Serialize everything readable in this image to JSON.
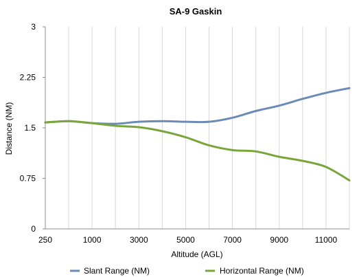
{
  "chart_data": {
    "type": "line",
    "title": "SA-9 Gaskin",
    "xlabel": "Altitude (AGL)",
    "ylabel": "Distance (NM)",
    "x": [
      250,
      500,
      1000,
      2000,
      3000,
      4000,
      5000,
      6000,
      7000,
      8000,
      9000,
      10000,
      11000,
      12000
    ],
    "x_tick_labels": [
      "250",
      "1000",
      "3000",
      "5000",
      "7000",
      "9000",
      "11000"
    ],
    "y_tick_labels": [
      "0",
      "0.75",
      "1.5",
      "2.25",
      "3"
    ],
    "ylim": [
      0,
      3
    ],
    "grid": "vertical",
    "legend_position": "bottom",
    "series": [
      {
        "name": "Slant Range (NM)",
        "color": "#6a8bb8",
        "values": [
          1.58,
          1.6,
          1.57,
          1.56,
          1.59,
          1.6,
          1.59,
          1.59,
          1.65,
          1.75,
          1.83,
          1.93,
          2.02,
          2.09
        ]
      },
      {
        "name": "Horizontal Range (NM)",
        "color": "#7aa53b",
        "values": [
          1.58,
          1.6,
          1.57,
          1.53,
          1.51,
          1.45,
          1.36,
          1.24,
          1.17,
          1.15,
          1.07,
          1.01,
          0.92,
          0.72
        ]
      }
    ]
  }
}
